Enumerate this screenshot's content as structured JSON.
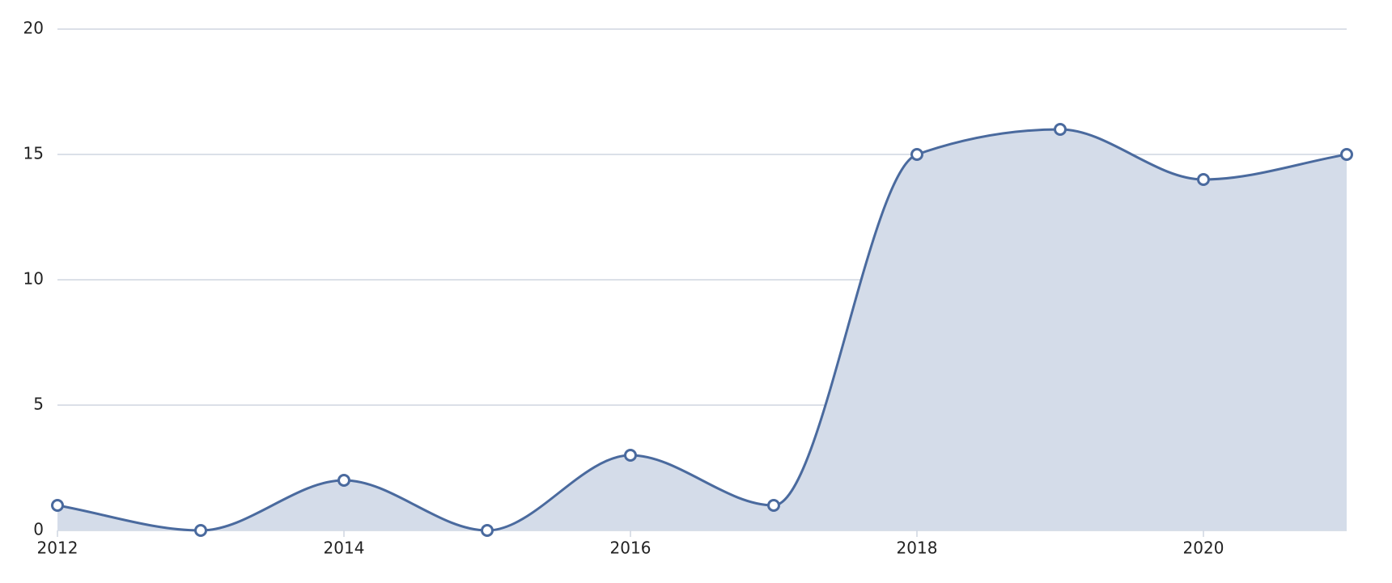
{
  "chart_data": {
    "type": "area",
    "x": [
      2012,
      2013,
      2014,
      2015,
      2016,
      2017,
      2018,
      2019,
      2020,
      2021
    ],
    "series": [
      {
        "color": "#4a6a9e",
        "fill": "#d4dce9",
        "values": [
          1,
          0,
          2,
          0,
          3,
          1,
          15,
          16,
          14,
          15
        ]
      }
    ],
    "xlim": [
      2012,
      2021
    ],
    "xticks": [
      2012,
      2014,
      2016,
      2018,
      2020
    ],
    "ylim": [
      0,
      20
    ],
    "yticks": [
      0,
      5,
      10,
      15,
      20
    ],
    "grid": true,
    "smooth": true,
    "markers": true
  }
}
